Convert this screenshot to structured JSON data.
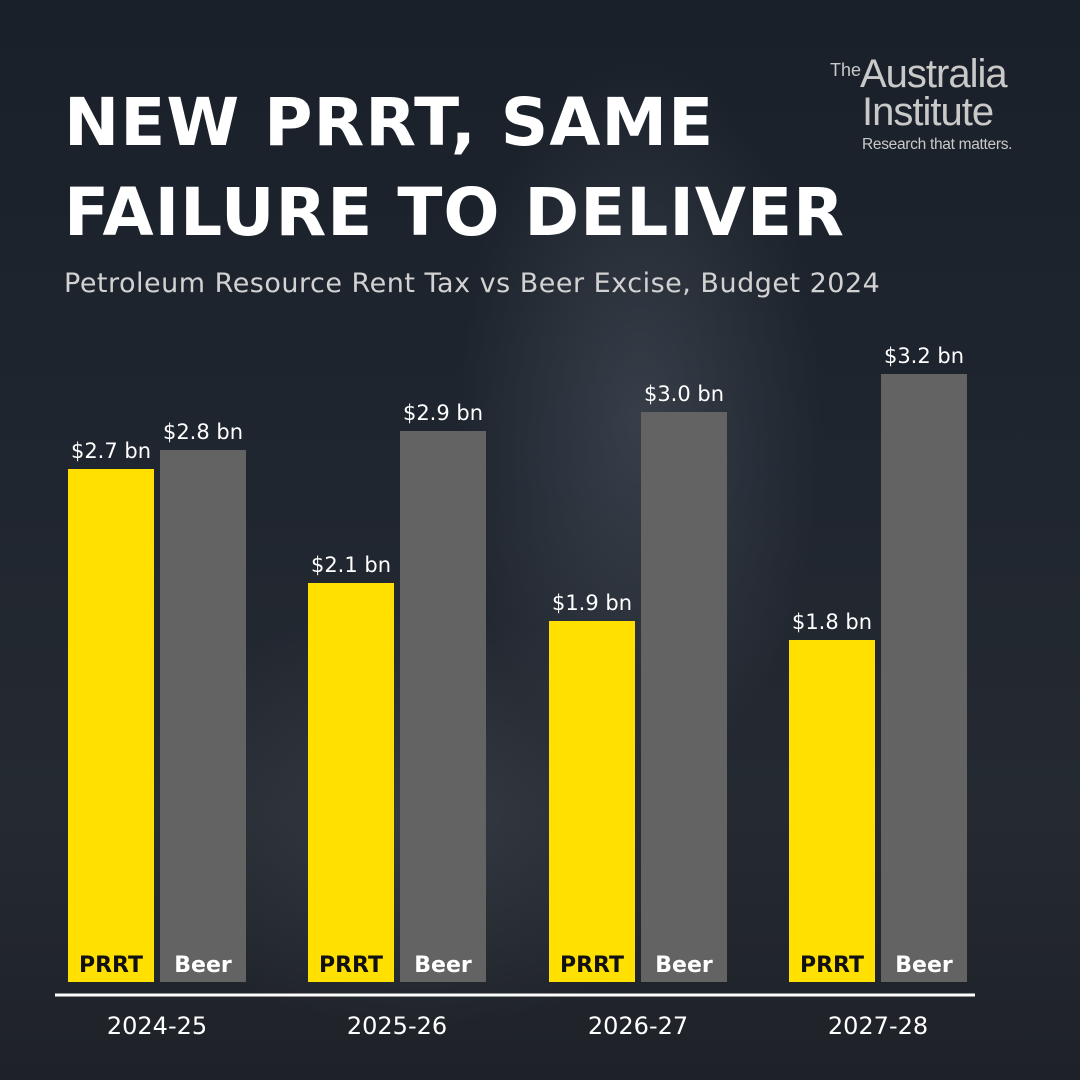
{
  "title_line1": "NEW PRRT, SAME",
  "title_line2": "FAILURE TO DELIVER",
  "subtitle": "Petroleum Resource Rent Tax vs Beer Excise, Budget 2024",
  "logo": {
    "the": "The",
    "line1": "Australia",
    "line2": "Institute",
    "tagline": "Research that matters."
  },
  "colors": {
    "prrt": "#ffe000",
    "beer": "#636363",
    "axis": "#ffffff",
    "text": "#ffffff"
  },
  "chart_data": {
    "type": "bar",
    "title": "NEW PRRT, SAME FAILURE TO DELIVER",
    "subtitle": "Petroleum Resource Rent Tax vs Beer Excise, Budget 2024",
    "categories": [
      "2024-25",
      "2025-26",
      "2026-27",
      "2027-28"
    ],
    "series": [
      {
        "name": "PRRT",
        "values": [
          2.7,
          2.1,
          1.9,
          1.8
        ],
        "labels": [
          "$2.7 bn",
          "$2.1 bn",
          "$1.9 bn",
          "$1.8 bn"
        ]
      },
      {
        "name": "Beer",
        "values": [
          2.8,
          2.9,
          3.0,
          3.2
        ],
        "labels": [
          "$2.8 bn",
          "$2.9 bn",
          "$3.0 bn",
          "$3.2 bn"
        ]
      }
    ],
    "unit": "$ bn",
    "ylim": [
      0,
      3.2
    ],
    "grid": false,
    "legend": "none"
  }
}
